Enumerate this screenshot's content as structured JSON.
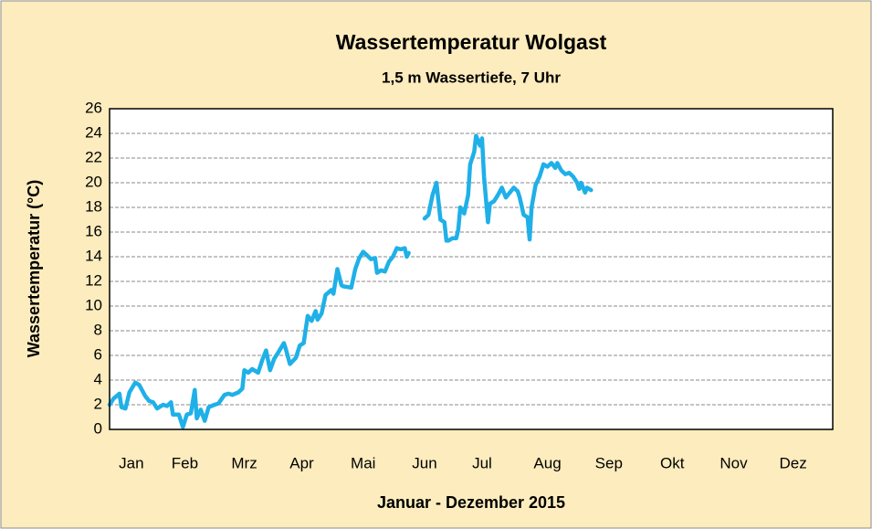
{
  "chart_data": {
    "type": "line",
    "title": "Wassertemperatur Wolgast",
    "subtitle": "1,5 m Wassertiefe, 7 Uhr",
    "y_label": "Wassertemperatur (°C)",
    "x_label": "Januar - Dezember 2015",
    "xlim": [
      0,
      365
    ],
    "xticks": [
      {
        "value": 11,
        "label": "Jan"
      },
      {
        "value": 38,
        "label": "Feb"
      },
      {
        "value": 68,
        "label": "Mrz"
      },
      {
        "value": 97,
        "label": "Apr"
      },
      {
        "value": 128,
        "label": "Mai"
      },
      {
        "value": 159,
        "label": "Jun"
      },
      {
        "value": 188,
        "label": "Jul"
      },
      {
        "value": 221,
        "label": "Aug"
      },
      {
        "value": 252,
        "label": "Sep"
      },
      {
        "value": 284,
        "label": "Okt"
      },
      {
        "value": 315,
        "label": "Nov"
      },
      {
        "value": 345,
        "label": "Dez"
      }
    ],
    "ylim": [
      0,
      26
    ],
    "yticks": [
      0,
      2,
      4,
      6,
      8,
      10,
      12,
      14,
      16,
      18,
      20,
      22,
      24,
      26
    ],
    "grid": true,
    "x": [
      0,
      2,
      5,
      6,
      8,
      10,
      13,
      15,
      18,
      20,
      22,
      24,
      27,
      29,
      31,
      32,
      35,
      37,
      39,
      41,
      43,
      44,
      46,
      48,
      50,
      53,
      55,
      58,
      60,
      62,
      65,
      67,
      68,
      70,
      72,
      75,
      77,
      79,
      81,
      83,
      85,
      88,
      89,
      91,
      94,
      96,
      98,
      100,
      102,
      104,
      105,
      107,
      109,
      112,
      113,
      115,
      117,
      118,
      122,
      124,
      126,
      128,
      130,
      132,
      134,
      135,
      137,
      139,
      141,
      143,
      145,
      147,
      149,
      150,
      151,
      153,
      159,
      161,
      163,
      165,
      166,
      167,
      169,
      170,
      171,
      173,
      175,
      176,
      177,
      179,
      181,
      182,
      184,
      185,
      187,
      188,
      189,
      191,
      192,
      194,
      196,
      198,
      200,
      201,
      204,
      206,
      207,
      209,
      211,
      212,
      213,
      215,
      217,
      219,
      221,
      223,
      225,
      226,
      228,
      230,
      232,
      234,
      236,
      237,
      238,
      240,
      241,
      243
    ],
    "series": [
      {
        "color": "#1fb0e8",
        "values": [
          2.0,
          2.5,
          2.9,
          1.8,
          1.7,
          3.0,
          3.8,
          3.6,
          2.7,
          2.3,
          2.2,
          1.7,
          2.0,
          1.9,
          2.2,
          1.2,
          1.2,
          0.2,
          1.2,
          1.3,
          3.2,
          0.9,
          1.6,
          0.7,
          1.8,
          2.0,
          2.1,
          2.8,
          2.9,
          2.8,
          3.0,
          3.3,
          4.8,
          4.6,
          4.9,
          4.6,
          5.6,
          6.4,
          4.8,
          5.7,
          6.2,
          7.0,
          6.5,
          5.3,
          5.8,
          6.8,
          7.0,
          9.2,
          8.8,
          9.6,
          8.9,
          9.4,
          10.9,
          11.3,
          11.0,
          13.0,
          11.7,
          11.6,
          11.5,
          13.0,
          13.9,
          14.4,
          14.1,
          13.8,
          13.9,
          12.7,
          12.9,
          12.8,
          13.6,
          14.0,
          14.7,
          14.6,
          14.7,
          14.0,
          14.3,
          null,
          17.1,
          17.4,
          19.0,
          20.0,
          18.5,
          17.0,
          16.8,
          15.3,
          15.3,
          15.5,
          15.5,
          16.2,
          18.0,
          17.5,
          19.0,
          21.5,
          22.5,
          23.8,
          23.0,
          23.6,
          20.5,
          16.8,
          18.3,
          18.5,
          19.0,
          19.6,
          18.8,
          19.0,
          19.6,
          19.3,
          18.8,
          17.4,
          17.2,
          15.4,
          18.0,
          19.8,
          20.5,
          21.5,
          21.3,
          21.6,
          21.2,
          21.6,
          21.0,
          20.7,
          20.8,
          20.5,
          20.0,
          19.5,
          20.0,
          19.2,
          19.6,
          19.4
        ]
      }
    ]
  }
}
